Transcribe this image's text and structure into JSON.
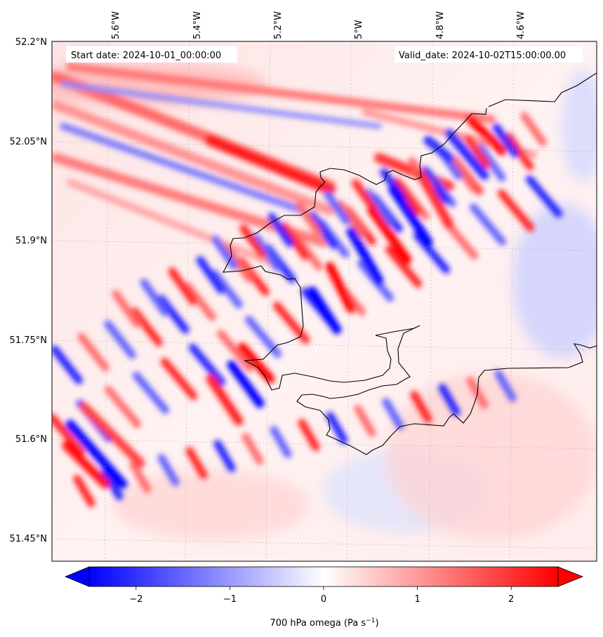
{
  "map": {
    "start_date_label": "Start date: 2024-10-01_00:00:00",
    "valid_date_label": "Valid_date: 2024-10-02T15:00:00.00",
    "longitude_labels": [
      "5.6°W",
      "5.4°W",
      "5.2°W",
      "5°W",
      "4.8°W",
      "4.6°W"
    ],
    "latitude_labels": [
      "52.2°N",
      "52.05°N",
      "51.9°N",
      "51.75°N",
      "51.6°N",
      "51.45°N"
    ]
  },
  "colorbar": {
    "cmap": "bwr",
    "min_color": "#0000ff",
    "mid_color": "#ffffff",
    "max_color": "#ff0000",
    "range": [
      -2.5,
      2.5
    ],
    "extend": "both",
    "tick_values": [
      -2,
      -1,
      0,
      1,
      2
    ],
    "tick_labels": [
      "−2",
      "−1",
      "0",
      "1",
      "2"
    ],
    "label_main": "700 hPa omega (Pa s",
    "label_exp": "−1",
    "label_close": ")"
  }
}
